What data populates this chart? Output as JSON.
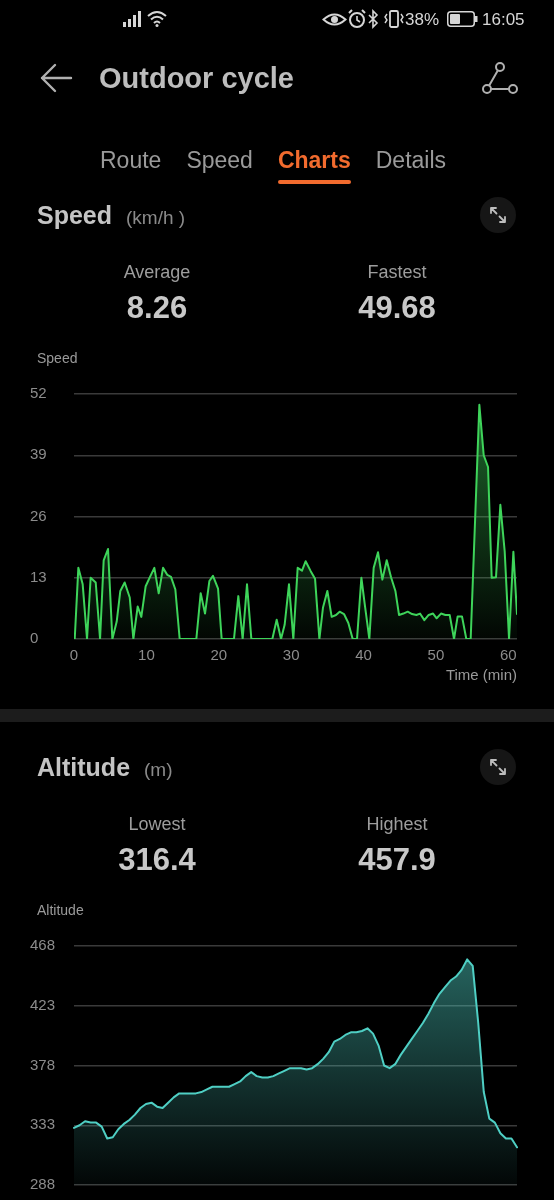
{
  "chart_data": [
    {
      "type": "other",
      "title": "Outdoor cycle",
      "annotations": [
        "38%",
        "16:05",
        "Route",
        "Speed",
        "Charts",
        "Details"
      ]
    },
    {
      "type": "area",
      "title": "Speed",
      "subtitle": "(km/h )",
      "ylabel": "Speed",
      "xlabel": "Time (min)",
      "annotations": [
        "Average",
        "8.26",
        "Fastest",
        "49.68"
      ],
      "x": [
        0.1,
        0.6,
        1.2,
        1.8,
        2.3,
        3.0,
        3.6,
        4.1,
        4.7,
        5.3,
        5.9,
        6.4,
        7.0,
        7.7,
        8.2,
        8.8,
        9.3,
        9.9,
        10.5,
        11.1,
        11.7,
        12.3,
        12.9,
        13.4,
        14.0,
        14.6,
        16.9,
        17.5,
        18.1,
        18.7,
        19.2,
        19.9,
        20.4,
        22.1,
        22.7,
        23.3,
        23.9,
        24.5,
        27.4,
        28.0,
        28.6,
        29.1,
        29.7,
        30.3,
        30.9,
        31.5,
        32.0,
        32.7,
        33.3,
        33.9,
        34.4,
        35.0,
        35.6,
        36.2,
        36.7,
        37.3,
        37.9,
        38.5,
        39.1,
        39.7,
        40.2,
        40.8,
        41.4,
        42.0,
        42.6,
        43.2,
        43.8,
        44.4,
        44.9,
        45.5,
        46.1,
        46.7,
        47.3,
        47.8,
        48.4,
        49.0,
        49.6,
        50.1,
        50.7,
        51.3,
        51.9,
        52.5,
        53.0,
        53.6,
        54.2,
        54.8,
        56.0,
        56.6,
        57.2,
        57.7,
        58.3,
        58.9,
        59.5,
        60.1,
        60.7,
        61.2
      ],
      "series": [
        {
          "color": "#3ed45a",
          "values": [
            0,
            15.1,
            11.6,
            0,
            13,
            12,
            0,
            16.7,
            19.1,
            0,
            3.7,
            10.2,
            12,
            8.8,
            0,
            6.9,
            4.7,
            11.2,
            13.2,
            15.1,
            9.7,
            15.1,
            13.6,
            13.2,
            10.5,
            0,
            0,
            9.7,
            5.4,
            12.3,
            13.4,
            10.7,
            0,
            0,
            9.1,
            0,
            11.6,
            0,
            0,
            4.1,
            0,
            3,
            11.6,
            0,
            15.1,
            14.5,
            16.5,
            14.4,
            12.8,
            0,
            6.7,
            10.2,
            4.7,
            5.1,
            5.8,
            5.3,
            3.4,
            0,
            0,
            13,
            7,
            0,
            15.1,
            18.4,
            12.6,
            16.7,
            13.1,
            10.2,
            5.1,
            5.4,
            5.8,
            5.3,
            5.1,
            5.4,
            4,
            5.1,
            5.4,
            4.4,
            5.4,
            5.1,
            5.1,
            0,
            4.8,
            4.8,
            0,
            0,
            49.7,
            39,
            36.5,
            13,
            13.1,
            28.5,
            18.6,
            0,
            18.5,
            5.3
          ]
        }
      ],
      "xlim": [
        0,
        61.2
      ],
      "xticks": [
        0,
        10,
        20,
        30,
        40,
        50,
        60
      ],
      "ylim": [
        0,
        52
      ],
      "yticks": [
        0,
        13,
        26,
        39,
        52
      ],
      "grid": "y"
    },
    {
      "type": "area",
      "title": "Altitude",
      "subtitle": "(m)",
      "ylabel": "Altitude",
      "annotations": [
        "Lowest",
        "316.4",
        "Highest",
        "457.9"
      ],
      "categories": [
        null,
        null,
        null,
        null,
        null,
        null,
        null,
        null,
        null,
        null,
        null,
        null,
        null,
        null,
        null,
        null,
        null,
        null,
        null,
        null,
        null,
        null,
        null,
        null,
        null,
        null,
        null,
        null,
        null,
        null,
        null,
        null,
        null,
        null,
        null,
        null,
        null,
        null,
        null,
        null,
        null,
        null,
        null,
        null,
        null,
        null,
        null,
        null,
        null,
        null,
        null,
        null,
        null,
        null,
        null,
        null,
        null,
        null,
        null,
        null,
        null,
        null,
        null,
        null,
        null,
        null,
        null,
        null,
        null,
        null,
        null,
        null,
        null,
        null,
        null,
        null,
        null,
        null,
        null,
        null,
        null
      ],
      "series": [
        {
          "color": "#4fcfc4",
          "values": [
            331,
            333,
            336,
            335,
            335,
            332,
            323,
            324,
            330,
            334,
            337,
            341,
            346,
            349,
            350,
            347,
            346,
            350,
            354,
            357,
            357,
            357,
            357,
            358,
            360,
            362,
            362,
            362,
            362,
            364,
            366,
            370,
            373,
            370,
            369,
            369,
            370,
            372,
            374,
            376,
            376,
            376,
            375,
            376,
            379,
            383,
            388,
            396,
            398,
            401,
            403,
            403,
            404,
            406,
            402,
            393,
            378,
            376,
            379,
            386,
            392,
            398,
            404,
            410,
            417,
            425,
            432,
            437,
            442,
            445,
            450,
            457.9,
            453,
            410,
            358,
            338,
            335,
            327,
            323,
            323,
            316.4
          ]
        }
      ],
      "ylim": [
        288,
        468
      ],
      "yticks": [
        288,
        333,
        378,
        423,
        468
      ],
      "grid": "y",
      "tick_labels": "y"
    }
  ]
}
